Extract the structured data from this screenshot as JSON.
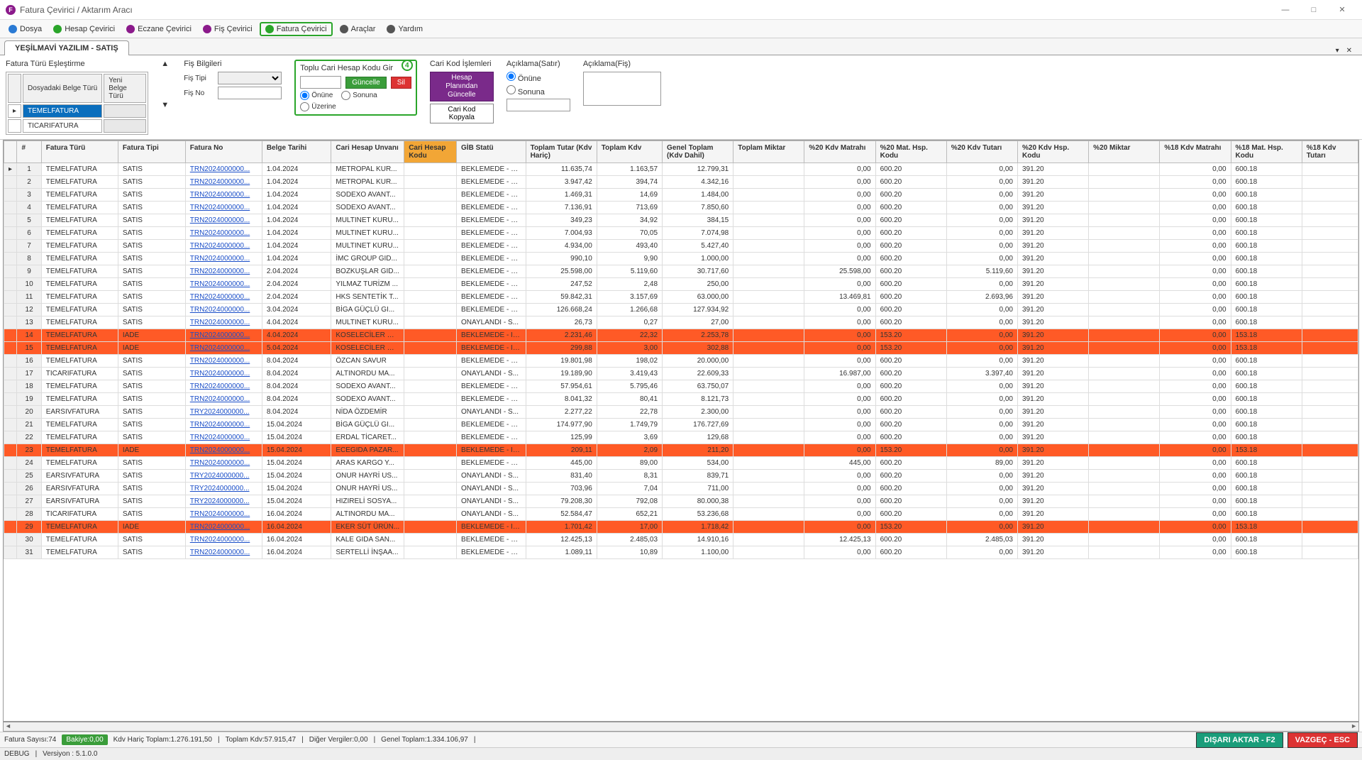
{
  "window": {
    "title": "Fatura Çevirici / Aktarım Aracı"
  },
  "toolbar": {
    "items": [
      {
        "label": "Dosya",
        "icon_color": "#2a7ad4"
      },
      {
        "label": "Hesap Çevirici",
        "icon_color": "#2aa52a"
      },
      {
        "label": "Eczane Çevirici",
        "icon_color": "#8b1a8b"
      },
      {
        "label": "Fiş Çevirici",
        "icon_color": "#8b1a8b"
      },
      {
        "label": "Fatura Çevirici",
        "icon_color": "#2aa52a",
        "active": true
      },
      {
        "label": "Araçlar",
        "icon_color": "#555"
      },
      {
        "label": "Yardım",
        "icon_color": "#555"
      }
    ]
  },
  "tab": {
    "title": "YEŞİLMAVİ YAZILIM - SATIŞ"
  },
  "form": {
    "type_match_title": "Fatura Türü Eşleştirme",
    "type_match_cols": [
      "Dosyadaki Belge Türü",
      "Yeni Belge Türü"
    ],
    "type_match_rows": [
      "TEMELFATURA",
      "TICARIFATURA"
    ],
    "fis_title": "Fiş Bilgileri",
    "fis_tipi_label": "Fiş Tipi",
    "fis_no_label": "Fiş No",
    "cari_title": "Toplu Cari Hesap Kodu Gir",
    "cari_step": "4",
    "guncelle": "Güncelle",
    "sil": "Sil",
    "r_onune": "Önüne",
    "r_sonuna": "Sonuna",
    "r_uzerine": "Üzerine",
    "kod_title": "Cari Kod İşlemleri",
    "hesap_plan": "Hesap Planından Güncelle",
    "kod_kopyala": "Cari Kod Kopyala",
    "aciklama_satir": "Açıklama(Satır)",
    "aciklama_fis": "Açıklama(Fiş)"
  },
  "grid": {
    "columns": [
      "",
      "#",
      "Fatura Türü",
      "Fatura Tipi",
      "Fatura No",
      "Belge Tarihi",
      "Cari Hesap Unvanı",
      "Cari Hesap Kodu",
      "GİB Statü",
      "Toplam Tutar (Kdv Hariç)",
      "Toplam Kdv",
      "Genel Toplam (Kdv Dahil)",
      "Toplam Miktar",
      "%20 Kdv Matrahı",
      "%20 Mat. Hsp. Kodu",
      "%20 Kdv Tutarı",
      "%20 Kdv Hsp. Kodu",
      "%20 Miktar",
      "%18 Kdv Matrahı",
      "%18 Mat. Hsp. Kodu",
      "%18 Kdv Tutarı"
    ],
    "hl_col": 7,
    "rows": [
      {
        "n": 1,
        "ft": "TEMELFATURA",
        "tip": "SATIS",
        "no": "TRN2024000000...",
        "tar": "1.04.2024",
        "unv": "METROPAL KUR...",
        "gib": "BEKLEMEDE - SA...",
        "tt": "11.635,74",
        "tk": "1.163,57",
        "gt": "12.799,31",
        "tm": "",
        "m20": "0,00",
        "mh20": "600.20",
        "kt20": "0,00",
        "kh20": "391.20",
        "mi20": "",
        "m18": "0,00",
        "mh18": "600.18",
        "kt18": ""
      },
      {
        "n": 2,
        "ft": "TEMELFATURA",
        "tip": "SATIS",
        "no": "TRN2024000000...",
        "tar": "1.04.2024",
        "unv": "METROPAL KUR...",
        "gib": "BEKLEMEDE - SA...",
        "tt": "3.947,42",
        "tk": "394,74",
        "gt": "4.342,16",
        "tm": "",
        "m20": "0,00",
        "mh20": "600.20",
        "kt20": "0,00",
        "kh20": "391.20",
        "mi20": "",
        "m18": "0,00",
        "mh18": "600.18",
        "kt18": ""
      },
      {
        "n": 3,
        "ft": "TEMELFATURA",
        "tip": "SATIS",
        "no": "TRN2024000000...",
        "tar": "1.04.2024",
        "unv": "SODEXO AVANT...",
        "gib": "BEKLEMEDE - SA...",
        "tt": "1.469,31",
        "tk": "14,69",
        "gt": "1.484,00",
        "tm": "",
        "m20": "0,00",
        "mh20": "600.20",
        "kt20": "0,00",
        "kh20": "391.20",
        "mi20": "",
        "m18": "0,00",
        "mh18": "600.18",
        "kt18": ""
      },
      {
        "n": 4,
        "ft": "TEMELFATURA",
        "tip": "SATIS",
        "no": "TRN2024000000...",
        "tar": "1.04.2024",
        "unv": "SODEXO AVANT...",
        "gib": "BEKLEMEDE - SA...",
        "tt": "7.136,91",
        "tk": "713,69",
        "gt": "7.850,60",
        "tm": "",
        "m20": "0,00",
        "mh20": "600.20",
        "kt20": "0,00",
        "kh20": "391.20",
        "mi20": "",
        "m18": "0,00",
        "mh18": "600.18",
        "kt18": ""
      },
      {
        "n": 5,
        "ft": "TEMELFATURA",
        "tip": "SATIS",
        "no": "TRN2024000000...",
        "tar": "1.04.2024",
        "unv": "MULTINET KURU...",
        "gib": "BEKLEMEDE - SA...",
        "tt": "349,23",
        "tk": "34,92",
        "gt": "384,15",
        "tm": "",
        "m20": "0,00",
        "mh20": "600.20",
        "kt20": "0,00",
        "kh20": "391.20",
        "mi20": "",
        "m18": "0,00",
        "mh18": "600.18",
        "kt18": ""
      },
      {
        "n": 6,
        "ft": "TEMELFATURA",
        "tip": "SATIS",
        "no": "TRN2024000000...",
        "tar": "1.04.2024",
        "unv": "MULTINET KURU...",
        "gib": "BEKLEMEDE - SA...",
        "tt": "7.004,93",
        "tk": "70,05",
        "gt": "7.074,98",
        "tm": "",
        "m20": "0,00",
        "mh20": "600.20",
        "kt20": "0,00",
        "kh20": "391.20",
        "mi20": "",
        "m18": "0,00",
        "mh18": "600.18",
        "kt18": ""
      },
      {
        "n": 7,
        "ft": "TEMELFATURA",
        "tip": "SATIS",
        "no": "TRN2024000000...",
        "tar": "1.04.2024",
        "unv": "MULTINET KURU...",
        "gib": "BEKLEMEDE - SA...",
        "tt": "4.934,00",
        "tk": "493,40",
        "gt": "5.427,40",
        "tm": "",
        "m20": "0,00",
        "mh20": "600.20",
        "kt20": "0,00",
        "kh20": "391.20",
        "mi20": "",
        "m18": "0,00",
        "mh18": "600.18",
        "kt18": ""
      },
      {
        "n": 8,
        "ft": "TEMELFATURA",
        "tip": "SATIS",
        "no": "TRN2024000000...",
        "tar": "1.04.2024",
        "unv": "İMC GROUP GID...",
        "gib": "BEKLEMEDE - SA...",
        "tt": "990,10",
        "tk": "9,90",
        "gt": "1.000,00",
        "tm": "",
        "m20": "0,00",
        "mh20": "600.20",
        "kt20": "0,00",
        "kh20": "391.20",
        "mi20": "",
        "m18": "0,00",
        "mh18": "600.18",
        "kt18": ""
      },
      {
        "n": 9,
        "ft": "TEMELFATURA",
        "tip": "SATIS",
        "no": "TRN2024000000...",
        "tar": "2.04.2024",
        "unv": "BOZKUŞLAR GID...",
        "gib": "BEKLEMEDE - SA...",
        "tt": "25.598,00",
        "tk": "5.119,60",
        "gt": "30.717,60",
        "tm": "",
        "m20": "25.598,00",
        "mh20": "600.20",
        "kt20": "5.119,60",
        "kh20": "391.20",
        "mi20": "",
        "m18": "0,00",
        "mh18": "600.18",
        "kt18": ""
      },
      {
        "n": 10,
        "ft": "TEMELFATURA",
        "tip": "SATIS",
        "no": "TRN2024000000...",
        "tar": "2.04.2024",
        "unv": "YILMAZ TURİZM ...",
        "gib": "BEKLEMEDE - SA...",
        "tt": "247,52",
        "tk": "2,48",
        "gt": "250,00",
        "tm": "",
        "m20": "0,00",
        "mh20": "600.20",
        "kt20": "0,00",
        "kh20": "391.20",
        "mi20": "",
        "m18": "0,00",
        "mh18": "600.18",
        "kt18": ""
      },
      {
        "n": 11,
        "ft": "TEMELFATURA",
        "tip": "SATIS",
        "no": "TRN2024000000...",
        "tar": "2.04.2024",
        "unv": "HKS SENTETİK T...",
        "gib": "BEKLEMEDE - SA...",
        "tt": "59.842,31",
        "tk": "3.157,69",
        "gt": "63.000,00",
        "tm": "",
        "m20": "13.469,81",
        "mh20": "600.20",
        "kt20": "2.693,96",
        "kh20": "391.20",
        "mi20": "",
        "m18": "0,00",
        "mh18": "600.18",
        "kt18": ""
      },
      {
        "n": 12,
        "ft": "TEMELFATURA",
        "tip": "SATIS",
        "no": "TRN2024000000...",
        "tar": "3.04.2024",
        "unv": "BİGA GÜÇLÜ GI...",
        "gib": "BEKLEMEDE - SA...",
        "tt": "126.668,24",
        "tk": "1.266,68",
        "gt": "127.934,92",
        "tm": "",
        "m20": "0,00",
        "mh20": "600.20",
        "kt20": "0,00",
        "kh20": "391.20",
        "mi20": "",
        "m18": "0,00",
        "mh18": "600.18",
        "kt18": ""
      },
      {
        "n": 13,
        "ft": "TEMELFATURA",
        "tip": "SATIS",
        "no": "TRN2024000000...",
        "tar": "4.04.2024",
        "unv": "MULTINET KURU...",
        "gib": "ONAYLANDI - S...",
        "tt": "26,73",
        "tk": "0,27",
        "gt": "27,00",
        "tm": "",
        "m20": "0,00",
        "mh20": "600.20",
        "kt20": "0,00",
        "kh20": "391.20",
        "mi20": "",
        "m18": "0,00",
        "mh18": "600.18",
        "kt18": ""
      },
      {
        "n": 14,
        "ft": "TEMELFATURA",
        "tip": "IADE",
        "no": "TRN2024000000...",
        "tar": "4.04.2024",
        "unv": "KOSELECİLER GI...",
        "gib": "BEKLEMEDE - IA...",
        "tt": "2.231,46",
        "tk": "22,32",
        "gt": "2.253,78",
        "tm": "",
        "m20": "0,00",
        "mh20": "153.20",
        "kt20": "0,00",
        "kh20": "391.20",
        "mi20": "",
        "m18": "0,00",
        "mh18": "153.18",
        "kt18": "",
        "iade": true
      },
      {
        "n": 15,
        "ft": "TEMELFATURA",
        "tip": "IADE",
        "no": "TRN2024000000...",
        "tar": "5.04.2024",
        "unv": "KOSELECİLER GI...",
        "gib": "BEKLEMEDE - IA...",
        "tt": "299,88",
        "tk": "3,00",
        "gt": "302,88",
        "tm": "",
        "m20": "0,00",
        "mh20": "153.20",
        "kt20": "0,00",
        "kh20": "391.20",
        "mi20": "",
        "m18": "0,00",
        "mh18": "153.18",
        "kt18": "",
        "iade": true
      },
      {
        "n": 16,
        "ft": "TEMELFATURA",
        "tip": "SATIS",
        "no": "TRN2024000000...",
        "tar": "8.04.2024",
        "unv": "ÖZCAN SAVUR",
        "gib": "BEKLEMEDE - SA...",
        "tt": "19.801,98",
        "tk": "198,02",
        "gt": "20.000,00",
        "tm": "",
        "m20": "0,00",
        "mh20": "600.20",
        "kt20": "0,00",
        "kh20": "391.20",
        "mi20": "",
        "m18": "0,00",
        "mh18": "600.18",
        "kt18": ""
      },
      {
        "n": 17,
        "ft": "TICARIFATURA",
        "tip": "SATIS",
        "no": "TRN2024000000...",
        "tar": "8.04.2024",
        "unv": "ALTINORDU MA...",
        "gib": "ONAYLANDI - S...",
        "tt": "19.189,90",
        "tk": "3.419,43",
        "gt": "22.609,33",
        "tm": "",
        "m20": "16.987,00",
        "mh20": "600.20",
        "kt20": "3.397,40",
        "kh20": "391.20",
        "mi20": "",
        "m18": "0,00",
        "mh18": "600.18",
        "kt18": ""
      },
      {
        "n": 18,
        "ft": "TEMELFATURA",
        "tip": "SATIS",
        "no": "TRN2024000000...",
        "tar": "8.04.2024",
        "unv": "SODEXO AVANT...",
        "gib": "BEKLEMEDE - SA...",
        "tt": "57.954,61",
        "tk": "5.795,46",
        "gt": "63.750,07",
        "tm": "",
        "m20": "0,00",
        "mh20": "600.20",
        "kt20": "0,00",
        "kh20": "391.20",
        "mi20": "",
        "m18": "0,00",
        "mh18": "600.18",
        "kt18": ""
      },
      {
        "n": 19,
        "ft": "TEMELFATURA",
        "tip": "SATIS",
        "no": "TRN2024000000...",
        "tar": "8.04.2024",
        "unv": "SODEXO AVANT...",
        "gib": "BEKLEMEDE - SA...",
        "tt": "8.041,32",
        "tk": "80,41",
        "gt": "8.121,73",
        "tm": "",
        "m20": "0,00",
        "mh20": "600.20",
        "kt20": "0,00",
        "kh20": "391.20",
        "mi20": "",
        "m18": "0,00",
        "mh18": "600.18",
        "kt18": ""
      },
      {
        "n": 20,
        "ft": "EARSIVFATURA",
        "tip": "SATIS",
        "no": "TRY2024000000...",
        "tar": "8.04.2024",
        "unv": "NİDA ÖZDEMİR",
        "gib": "ONAYLANDI - S...",
        "tt": "2.277,22",
        "tk": "22,78",
        "gt": "2.300,00",
        "tm": "",
        "m20": "0,00",
        "mh20": "600.20",
        "kt20": "0,00",
        "kh20": "391.20",
        "mi20": "",
        "m18": "0,00",
        "mh18": "600.18",
        "kt18": ""
      },
      {
        "n": 21,
        "ft": "TEMELFATURA",
        "tip": "SATIS",
        "no": "TRN2024000000...",
        "tar": "15.04.2024",
        "unv": "BİGA GÜÇLÜ GI...",
        "gib": "BEKLEMEDE - SA...",
        "tt": "174.977,90",
        "tk": "1.749,79",
        "gt": "176.727,69",
        "tm": "",
        "m20": "0,00",
        "mh20": "600.20",
        "kt20": "0,00",
        "kh20": "391.20",
        "mi20": "",
        "m18": "0,00",
        "mh18": "600.18",
        "kt18": ""
      },
      {
        "n": 22,
        "ft": "TEMELFATURA",
        "tip": "SATIS",
        "no": "TRN2024000000...",
        "tar": "15.04.2024",
        "unv": "ERDAL TİCARET...",
        "gib": "BEKLEMEDE - SA...",
        "tt": "125,99",
        "tk": "3,69",
        "gt": "129,68",
        "tm": "",
        "m20": "0,00",
        "mh20": "600.20",
        "kt20": "0,00",
        "kh20": "391.20",
        "mi20": "",
        "m18": "0,00",
        "mh18": "600.18",
        "kt18": ""
      },
      {
        "n": 23,
        "ft": "TEMELFATURA",
        "tip": "IADE",
        "no": "TRN2024000000...",
        "tar": "15.04.2024",
        "unv": "ECEGIDA PAZAR...",
        "gib": "BEKLEMEDE - IA...",
        "tt": "209,11",
        "tk": "2,09",
        "gt": "211,20",
        "tm": "",
        "m20": "0,00",
        "mh20": "153.20",
        "kt20": "0,00",
        "kh20": "391.20",
        "mi20": "",
        "m18": "0,00",
        "mh18": "153.18",
        "kt18": "",
        "iade": true
      },
      {
        "n": 24,
        "ft": "TEMELFATURA",
        "tip": "SATIS",
        "no": "TRN2024000000...",
        "tar": "15.04.2024",
        "unv": "ARAS KARGO Y...",
        "gib": "BEKLEMEDE - SA...",
        "tt": "445,00",
        "tk": "89,00",
        "gt": "534,00",
        "tm": "",
        "m20": "445,00",
        "mh20": "600.20",
        "kt20": "89,00",
        "kh20": "391.20",
        "mi20": "",
        "m18": "0,00",
        "mh18": "600.18",
        "kt18": ""
      },
      {
        "n": 25,
        "ft": "EARSIVFATURA",
        "tip": "SATIS",
        "no": "TRY2024000000...",
        "tar": "15.04.2024",
        "unv": "ONUR HAYRİ US...",
        "gib": "ONAYLANDI - S...",
        "tt": "831,40",
        "tk": "8,31",
        "gt": "839,71",
        "tm": "",
        "m20": "0,00",
        "mh20": "600.20",
        "kt20": "0,00",
        "kh20": "391.20",
        "mi20": "",
        "m18": "0,00",
        "mh18": "600.18",
        "kt18": ""
      },
      {
        "n": 26,
        "ft": "EARSIVFATURA",
        "tip": "SATIS",
        "no": "TRY2024000000...",
        "tar": "15.04.2024",
        "unv": "ONUR HAYRİ US...",
        "gib": "ONAYLANDI - S...",
        "tt": "703,96",
        "tk": "7,04",
        "gt": "711,00",
        "tm": "",
        "m20": "0,00",
        "mh20": "600.20",
        "kt20": "0,00",
        "kh20": "391.20",
        "mi20": "",
        "m18": "0,00",
        "mh18": "600.18",
        "kt18": ""
      },
      {
        "n": 27,
        "ft": "EARSIVFATURA",
        "tip": "SATIS",
        "no": "TRY2024000000...",
        "tar": "15.04.2024",
        "unv": "HIZIRELİ SOSYA...",
        "gib": "ONAYLANDI - S...",
        "tt": "79.208,30",
        "tk": "792,08",
        "gt": "80.000,38",
        "tm": "",
        "m20": "0,00",
        "mh20": "600.20",
        "kt20": "0,00",
        "kh20": "391.20",
        "mi20": "",
        "m18": "0,00",
        "mh18": "600.18",
        "kt18": ""
      },
      {
        "n": 28,
        "ft": "TICARIFATURA",
        "tip": "SATIS",
        "no": "TRN2024000000...",
        "tar": "16.04.2024",
        "unv": "ALTINORDU MA...",
        "gib": "ONAYLANDI - S...",
        "tt": "52.584,47",
        "tk": "652,21",
        "gt": "53.236,68",
        "tm": "",
        "m20": "0,00",
        "mh20": "600.20",
        "kt20": "0,00",
        "kh20": "391.20",
        "mi20": "",
        "m18": "0,00",
        "mh18": "600.18",
        "kt18": ""
      },
      {
        "n": 29,
        "ft": "TEMELFATURA",
        "tip": "IADE",
        "no": "TRN2024000000...",
        "tar": "16.04.2024",
        "unv": "EKER SÜT ÜRÜN...",
        "gib": "BEKLEMEDE - IA...",
        "tt": "1.701,42",
        "tk": "17,00",
        "gt": "1.718,42",
        "tm": "",
        "m20": "0,00",
        "mh20": "153.20",
        "kt20": "0,00",
        "kh20": "391.20",
        "mi20": "",
        "m18": "0,00",
        "mh18": "153.18",
        "kt18": "",
        "iade": true
      },
      {
        "n": 30,
        "ft": "TEMELFATURA",
        "tip": "SATIS",
        "no": "TRN2024000000...",
        "tar": "16.04.2024",
        "unv": "KALE GIDA SAN...",
        "gib": "BEKLEMEDE - SA...",
        "tt": "12.425,13",
        "tk": "2.485,03",
        "gt": "14.910,16",
        "tm": "",
        "m20": "12.425,13",
        "mh20": "600.20",
        "kt20": "2.485,03",
        "kh20": "391.20",
        "mi20": "",
        "m18": "0,00",
        "mh18": "600.18",
        "kt18": ""
      },
      {
        "n": 31,
        "ft": "TEMELFATURA",
        "tip": "SATIS",
        "no": "TRN2024000000...",
        "tar": "16.04.2024",
        "unv": "SERTELLİ İNŞAA...",
        "gib": "BEKLEMEDE - SA...",
        "tt": "1.089,11",
        "tk": "10,89",
        "gt": "1.100,00",
        "tm": "",
        "m20": "0,00",
        "mh20": "600.20",
        "kt20": "0,00",
        "kh20": "391.20",
        "mi20": "",
        "m18": "0,00",
        "mh18": "600.18",
        "kt18": ""
      }
    ]
  },
  "status": {
    "count_label": "Fatura Sayısı:74",
    "bakiye": "Bakiye:0,00",
    "haric": "Kdv Hariç Toplam:1.276.191,50",
    "kdv": "Toplam Kdv:57.915,47",
    "diger": "Diğer Vergiler:0,00",
    "genel": "Genel Toplam:1.334.106,97",
    "export": "DIŞARI AKTAR - F2",
    "cancel": "VAZGEÇ - ESC"
  },
  "debug": {
    "label": "DEBUG",
    "version": "Versiyon : 5.1.0.0"
  }
}
